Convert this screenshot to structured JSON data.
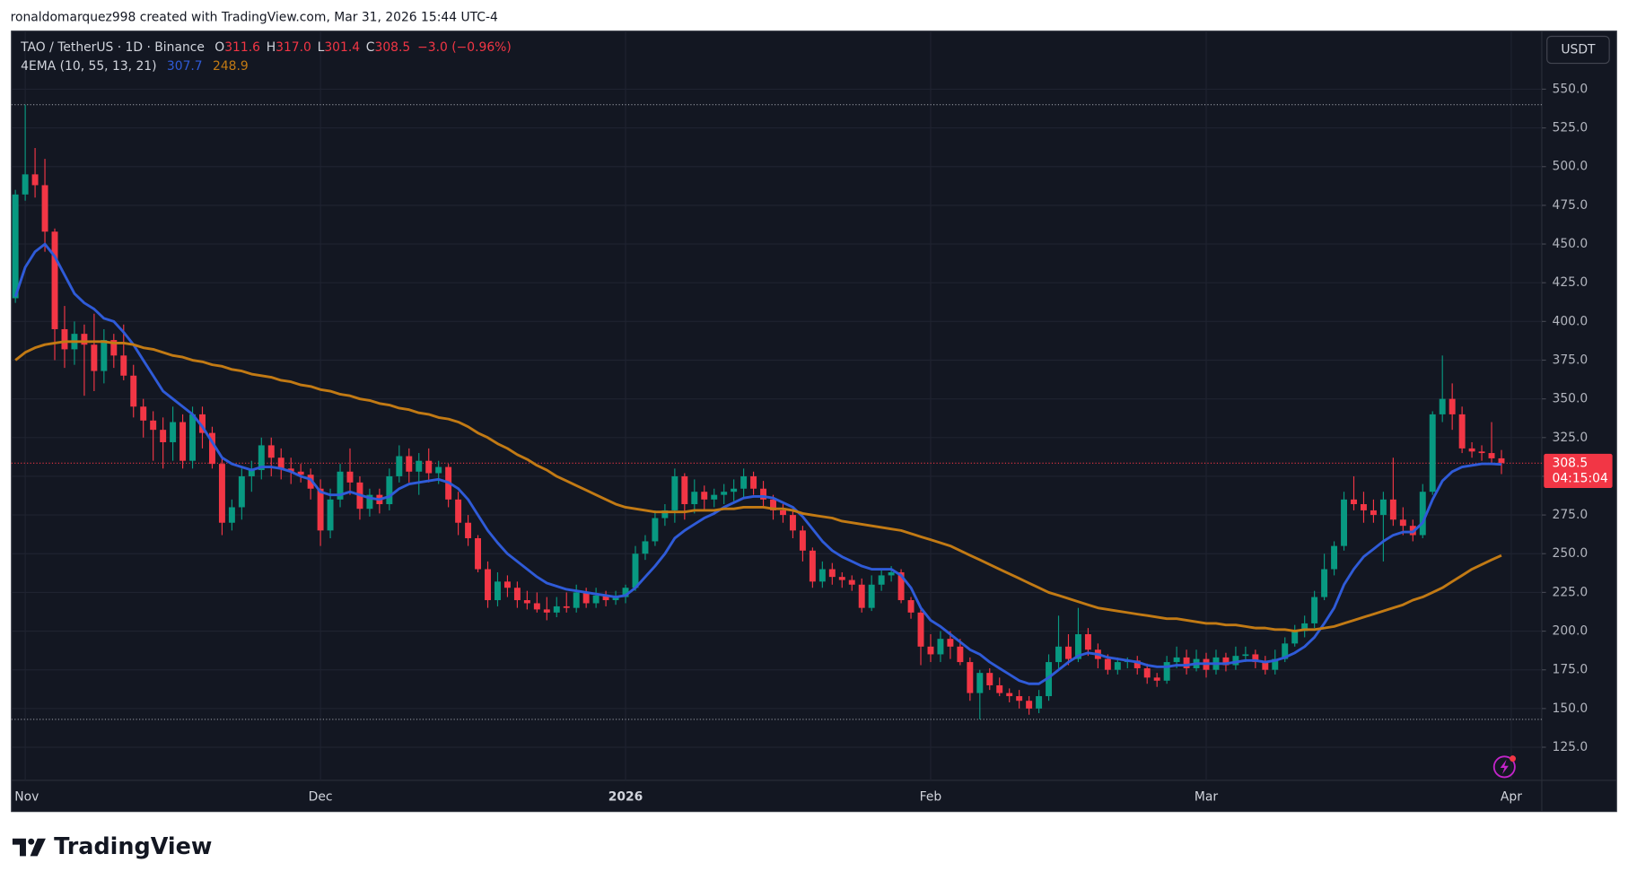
{
  "attribution": "ronaldomarquez998 created with TradingView.com, Mar 31, 2026 15:44 UTC-4",
  "brand": "TradingView",
  "chart_data": {
    "type": "candlestick",
    "legend": {
      "symbol": "TAO / TetherUS · 1D · Binance",
      "ohlc": [
        [
          "O",
          "311.6"
        ],
        [
          "H",
          "317.0"
        ],
        [
          "L",
          "301.4"
        ],
        [
          "C",
          "308.5"
        ]
      ],
      "change": "−3.0 (−0.96%)",
      "indicator": "4EMA (10, 55, 13, 21)"
    },
    "currency": "USDT",
    "up_color": "#089981",
    "down_color": "#f23645",
    "candles": [
      [
        415,
        485,
        412,
        482
      ],
      [
        482,
        540,
        478,
        495
      ],
      [
        495,
        512,
        480,
        488
      ],
      [
        488,
        505,
        445,
        458
      ],
      [
        458,
        460,
        375,
        395
      ],
      [
        395,
        410,
        370,
        382
      ],
      [
        382,
        400,
        372,
        392
      ],
      [
        392,
        398,
        352,
        385
      ],
      [
        385,
        405,
        355,
        368
      ],
      [
        368,
        395,
        360,
        388
      ],
      [
        388,
        392,
        370,
        378
      ],
      [
        378,
        398,
        362,
        365
      ],
      [
        365,
        372,
        338,
        345
      ],
      [
        345,
        350,
        325,
        336
      ],
      [
        336,
        342,
        310,
        330
      ],
      [
        330,
        338,
        305,
        322
      ],
      [
        322,
        345,
        310,
        335
      ],
      [
        335,
        340,
        305,
        310
      ],
      [
        310,
        345,
        305,
        340
      ],
      [
        340,
        345,
        318,
        328
      ],
      [
        328,
        332,
        305,
        308
      ],
      [
        308,
        312,
        262,
        270
      ],
      [
        270,
        285,
        265,
        280
      ],
      [
        280,
        305,
        272,
        300
      ],
      [
        300,
        310,
        290,
        304
      ],
      [
        304,
        325,
        298,
        320
      ],
      [
        320,
        325,
        300,
        312
      ],
      [
        312,
        318,
        298,
        305
      ],
      [
        305,
        312,
        295,
        303
      ],
      [
        303,
        308,
        296,
        301
      ],
      [
        301,
        305,
        285,
        292
      ],
      [
        292,
        298,
        255,
        265
      ],
      [
        265,
        292,
        260,
        285
      ],
      [
        285,
        308,
        280,
        303
      ],
      [
        303,
        318,
        288,
        296
      ],
      [
        296,
        300,
        272,
        279
      ],
      [
        279,
        292,
        274,
        288
      ],
      [
        288,
        292,
        276,
        282
      ],
      [
        282,
        305,
        278,
        300
      ],
      [
        300,
        320,
        296,
        313
      ],
      [
        313,
        318,
        296,
        303
      ],
      [
        303,
        315,
        288,
        310
      ],
      [
        310,
        318,
        296,
        302
      ],
      [
        302,
        310,
        295,
        306
      ],
      [
        306,
        308,
        280,
        285
      ],
      [
        285,
        290,
        262,
        270
      ],
      [
        270,
        275,
        255,
        260
      ],
      [
        260,
        262,
        238,
        240
      ],
      [
        240,
        245,
        215,
        220
      ],
      [
        220,
        238,
        216,
        232
      ],
      [
        232,
        236,
        222,
        228
      ],
      [
        228,
        232,
        215,
        220
      ],
      [
        220,
        226,
        214,
        218
      ],
      [
        218,
        225,
        212,
        214
      ],
      [
        214,
        222,
        207,
        212
      ],
      [
        212,
        222,
        209,
        216
      ],
      [
        216,
        225,
        212,
        215
      ],
      [
        215,
        230,
        212,
        225
      ],
      [
        225,
        228,
        215,
        218
      ],
      [
        218,
        228,
        215,
        223
      ],
      [
        223,
        226,
        216,
        220
      ],
      [
        220,
        226,
        217,
        222
      ],
      [
        222,
        230,
        218,
        228
      ],
      [
        228,
        255,
        226,
        250
      ],
      [
        250,
        262,
        246,
        258
      ],
      [
        258,
        278,
        255,
        273
      ],
      [
        273,
        282,
        268,
        278
      ],
      [
        278,
        305,
        270,
        300
      ],
      [
        300,
        302,
        272,
        282
      ],
      [
        282,
        298,
        276,
        290
      ],
      [
        290,
        294,
        278,
        285
      ],
      [
        285,
        292,
        280,
        288
      ],
      [
        288,
        295,
        282,
        290
      ],
      [
        290,
        298,
        284,
        292
      ],
      [
        292,
        305,
        286,
        300
      ],
      [
        300,
        303,
        288,
        292
      ],
      [
        292,
        297,
        280,
        285
      ],
      [
        285,
        288,
        272,
        278
      ],
      [
        278,
        282,
        270,
        275
      ],
      [
        275,
        278,
        260,
        265
      ],
      [
        265,
        268,
        245,
        252
      ],
      [
        252,
        254,
        228,
        232
      ],
      [
        232,
        245,
        228,
        240
      ],
      [
        240,
        244,
        230,
        235
      ],
      [
        235,
        238,
        228,
        233
      ],
      [
        233,
        236,
        226,
        230
      ],
      [
        230,
        234,
        212,
        215
      ],
      [
        215,
        236,
        213,
        230
      ],
      [
        230,
        240,
        226,
        236
      ],
      [
        236,
        242,
        232,
        238
      ],
      [
        238,
        240,
        218,
        220
      ],
      [
        220,
        222,
        208,
        212
      ],
      [
        212,
        214,
        178,
        190
      ],
      [
        190,
        198,
        180,
        185
      ],
      [
        185,
        200,
        180,
        195
      ],
      [
        195,
        200,
        182,
        190
      ],
      [
        190,
        195,
        178,
        180
      ],
      [
        180,
        183,
        155,
        160
      ],
      [
        160,
        175,
        143,
        173
      ],
      [
        173,
        176,
        162,
        165
      ],
      [
        165,
        170,
        158,
        160
      ],
      [
        160,
        163,
        154,
        158
      ],
      [
        158,
        162,
        150,
        155
      ],
      [
        155,
        158,
        146,
        150
      ],
      [
        150,
        162,
        147,
        158
      ],
      [
        158,
        185,
        155,
        180
      ],
      [
        180,
        210,
        176,
        190
      ],
      [
        190,
        198,
        178,
        182
      ],
      [
        182,
        215,
        180,
        198
      ],
      [
        198,
        202,
        184,
        188
      ],
      [
        188,
        192,
        176,
        182
      ],
      [
        182,
        185,
        172,
        175
      ],
      [
        175,
        183,
        172,
        180
      ],
      [
        180,
        183,
        176,
        181
      ],
      [
        181,
        184,
        172,
        176
      ],
      [
        176,
        179,
        166,
        170
      ],
      [
        170,
        173,
        164,
        168
      ],
      [
        168,
        184,
        166,
        180
      ],
      [
        180,
        190,
        176,
        183
      ],
      [
        183,
        188,
        172,
        176
      ],
      [
        176,
        188,
        174,
        182
      ],
      [
        182,
        186,
        170,
        175
      ],
      [
        175,
        188,
        172,
        183
      ],
      [
        183,
        186,
        174,
        178
      ],
      [
        178,
        190,
        175,
        184
      ],
      [
        184,
        190,
        180,
        185
      ],
      [
        185,
        188,
        176,
        180
      ],
      [
        180,
        184,
        172,
        175
      ],
      [
        175,
        188,
        172,
        182
      ],
      [
        182,
        196,
        180,
        192
      ],
      [
        192,
        204,
        190,
        200
      ],
      [
        200,
        210,
        196,
        205
      ],
      [
        205,
        226,
        202,
        222
      ],
      [
        222,
        250,
        220,
        240
      ],
      [
        240,
        258,
        236,
        255
      ],
      [
        255,
        290,
        252,
        285
      ],
      [
        285,
        300,
        278,
        282
      ],
      [
        282,
        290,
        270,
        278
      ],
      [
        278,
        285,
        270,
        275
      ],
      [
        275,
        290,
        245,
        285
      ],
      [
        285,
        312,
        268,
        272
      ],
      [
        272,
        280,
        262,
        268
      ],
      [
        268,
        272,
        258,
        262
      ],
      [
        262,
        295,
        260,
        290
      ],
      [
        290,
        342,
        288,
        340
      ],
      [
        340,
        378,
        335,
        350
      ],
      [
        350,
        360,
        330,
        340
      ],
      [
        340,
        345,
        315,
        318
      ],
      [
        318,
        322,
        312,
        316
      ],
      [
        316,
        320,
        310,
        315
      ],
      [
        315,
        335,
        308,
        311.6
      ],
      [
        311.6,
        317,
        301.4,
        308.5
      ]
    ],
    "series": [
      {
        "color": "#2f5bd8",
        "values": [
          416,
          435,
          445,
          450,
          442,
          430,
          418,
          412,
          408,
          402,
          400,
          393,
          385,
          375,
          365,
          355,
          350,
          345,
          340,
          332,
          322,
          312,
          308,
          306,
          304,
          306,
          306,
          305,
          303,
          300,
          298,
          290,
          288,
          288,
          290,
          288,
          286,
          285,
          287,
          292,
          295,
          296,
          297,
          298,
          296,
          292,
          285,
          275,
          265,
          257,
          250,
          245,
          240,
          235,
          231,
          229,
          227,
          226,
          225,
          224,
          223,
          222,
          223,
          228,
          235,
          242,
          250,
          260,
          265,
          269,
          273,
          276,
          280,
          283,
          286,
          287,
          287,
          286,
          283,
          280,
          274,
          266,
          258,
          252,
          248,
          245,
          242,
          240,
          240,
          240,
          236,
          228,
          215,
          207,
          203,
          198,
          193,
          188,
          185,
          180,
          176,
          172,
          168,
          166,
          166,
          170,
          175,
          180,
          184,
          186,
          185,
          183,
          182,
          181,
          180,
          178,
          177,
          177,
          178,
          178,
          179,
          179,
          179,
          179,
          180,
          181,
          181,
          180,
          181,
          183,
          186,
          190,
          196,
          205,
          215,
          230,
          240,
          248,
          253,
          258,
          262,
          264,
          264,
          270,
          285,
          297,
          303,
          306,
          307,
          308,
          308,
          307.7
        ]
      },
      {
        "color": "#c27a14",
        "values": [
          375,
          380,
          383,
          385,
          386,
          387,
          387,
          387,
          387,
          387,
          386,
          386,
          385,
          383,
          382,
          380,
          378,
          377,
          375,
          374,
          372,
          371,
          369,
          368,
          366,
          365,
          364,
          362,
          361,
          359,
          358,
          356,
          355,
          353,
          352,
          350,
          349,
          347,
          346,
          344,
          343,
          341,
          340,
          338,
          337,
          335,
          332,
          328,
          325,
          321,
          318,
          314,
          311,
          307,
          304,
          300,
          297,
          294,
          291,
          288,
          285,
          282,
          280,
          279,
          278,
          277,
          277,
          277,
          277,
          278,
          278,
          278,
          279,
          279,
          280,
          280,
          280,
          279,
          279,
          278,
          276,
          275,
          274,
          273,
          271,
          270,
          269,
          268,
          267,
          266,
          265,
          263,
          261,
          259,
          257,
          255,
          252,
          249,
          246,
          243,
          240,
          237,
          234,
          231,
          228,
          225,
          223,
          221,
          219,
          217,
          215,
          214,
          213,
          212,
          211,
          210,
          209,
          208,
          208,
          207,
          206,
          205,
          205,
          204,
          204,
          203,
          202,
          202,
          201,
          201,
          200,
          201,
          201,
          202,
          203,
          205,
          207,
          209,
          211,
          213,
          215,
          217,
          220,
          222,
          225,
          228,
          232,
          236,
          240,
          243,
          246,
          248.9
        ]
      }
    ],
    "dotted_levels": [
      540,
      143
    ],
    "last_price": 308.5,
    "countdown": "04:15:04",
    "xlim": [
      -0.4,
      155.1
    ],
    "xticks": [
      {
        "value": 1,
        "label": "Nov"
      },
      {
        "value": 31,
        "label": "Dec"
      },
      {
        "value": 62,
        "label": "2026"
      },
      {
        "value": 93,
        "label": "Feb"
      },
      {
        "value": 121,
        "label": "Mar"
      },
      {
        "value": 152,
        "label": "Apr"
      }
    ],
    "ylim": [
      103.6,
      587.5
    ],
    "yticks": [
      {
        "value": 125,
        "label": "125.0"
      },
      {
        "value": 150,
        "label": "150.0"
      },
      {
        "value": 175,
        "label": "175.0"
      },
      {
        "value": 200,
        "label": "200.0"
      },
      {
        "value": 225,
        "label": "225.0"
      },
      {
        "value": 250,
        "label": "250.0"
      },
      {
        "value": 275,
        "label": "275.0"
      },
      {
        "value": 300,
        "label": "300.0"
      },
      {
        "value": 325,
        "label": "325.0"
      },
      {
        "value": 350,
        "label": "350.0"
      },
      {
        "value": 375,
        "label": "375.0"
      },
      {
        "value": 400,
        "label": "400.0"
      },
      {
        "value": 425,
        "label": "425.0"
      },
      {
        "value": 450,
        "label": "450.0"
      },
      {
        "value": 475,
        "label": "475.0"
      },
      {
        "value": 500,
        "label": "500.0"
      },
      {
        "value": 525,
        "label": "525.0"
      },
      {
        "value": 550,
        "label": "550.0"
      }
    ],
    "grid": true
  }
}
